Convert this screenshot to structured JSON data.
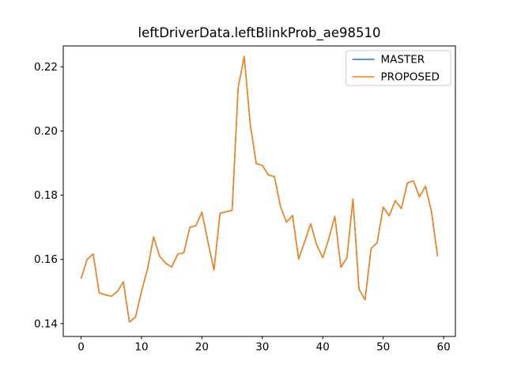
{
  "figure": {
    "background": "#ffffff",
    "title": "leftDriverData.leftBlinkProb_ae98510"
  },
  "chart_data": {
    "type": "line",
    "title": "leftDriverData.leftBlinkProb_ae98510",
    "xlabel": "",
    "ylabel": "",
    "grid": false,
    "xlim": [
      -2.95,
      61.95
    ],
    "ylim": [
      0.136,
      0.2265
    ],
    "xticks": [
      0,
      10,
      20,
      30,
      40,
      50,
      60
    ],
    "xtick_labels": [
      "0",
      "10",
      "20",
      "30",
      "40",
      "50",
      "60"
    ],
    "yticks": [
      0.14,
      0.16,
      0.18,
      0.2,
      0.22
    ],
    "ytick_labels": [
      "0.14",
      "0.16",
      "0.18",
      "0.20",
      "0.22"
    ],
    "x": [
      0,
      1,
      2,
      3,
      4,
      5,
      6,
      7,
      8,
      9,
      10,
      11,
      12,
      13,
      14,
      15,
      16,
      17,
      18,
      19,
      20,
      21,
      22,
      23,
      24,
      25,
      26,
      27,
      28,
      29,
      30,
      31,
      32,
      33,
      34,
      35,
      36,
      37,
      38,
      39,
      40,
      41,
      42,
      43,
      44,
      45,
      46,
      47,
      48,
      49,
      50,
      51,
      52,
      53,
      54,
      55,
      56,
      57,
      58,
      59
    ],
    "series": [
      {
        "name": "MASTER",
        "color": "#1f77b4",
        "values": [
          0.154,
          0.16,
          0.1617,
          0.1496,
          0.149,
          0.1485,
          0.15,
          0.153,
          0.1405,
          0.142,
          0.15,
          0.157,
          0.167,
          0.161,
          0.1588,
          0.1576,
          0.1617,
          0.162,
          0.17,
          0.1705,
          0.1747,
          0.1655,
          0.1567,
          0.1744,
          0.1748,
          0.1753,
          0.2136,
          0.2232,
          0.202,
          0.1898,
          0.1893,
          0.1863,
          0.1858,
          0.1765,
          0.1716,
          0.1737,
          0.1601,
          0.1655,
          0.1711,
          0.1645,
          0.1605,
          0.1665,
          0.1734,
          0.1575,
          0.1605,
          0.1788,
          0.1507,
          0.1474,
          0.1634,
          0.1652,
          0.1763,
          0.1736,
          0.1783,
          0.1758,
          0.1838,
          0.1845,
          0.1795,
          0.1828,
          0.1748,
          0.161
        ]
      },
      {
        "name": "PROPOSED",
        "color": "#ff7f0e",
        "values": [
          0.154,
          0.16,
          0.1617,
          0.1496,
          0.149,
          0.1485,
          0.15,
          0.153,
          0.1405,
          0.142,
          0.15,
          0.157,
          0.167,
          0.161,
          0.1588,
          0.1576,
          0.1617,
          0.162,
          0.17,
          0.1705,
          0.1747,
          0.1655,
          0.1567,
          0.1744,
          0.1748,
          0.1753,
          0.2136,
          0.2232,
          0.202,
          0.1898,
          0.1893,
          0.1863,
          0.1858,
          0.1765,
          0.1716,
          0.1737,
          0.1601,
          0.1655,
          0.1711,
          0.1645,
          0.1605,
          0.1665,
          0.1734,
          0.1575,
          0.1605,
          0.1788,
          0.1507,
          0.1474,
          0.1634,
          0.1652,
          0.1763,
          0.1736,
          0.1783,
          0.1758,
          0.1838,
          0.1845,
          0.1795,
          0.1828,
          0.1748,
          0.161
        ]
      }
    ],
    "legend": {
      "position": "upper right",
      "entries": [
        "MASTER",
        "PROPOSED"
      ],
      "border_color": "#cccccc",
      "background": "#ffffff"
    },
    "axis_color": "#000000"
  }
}
